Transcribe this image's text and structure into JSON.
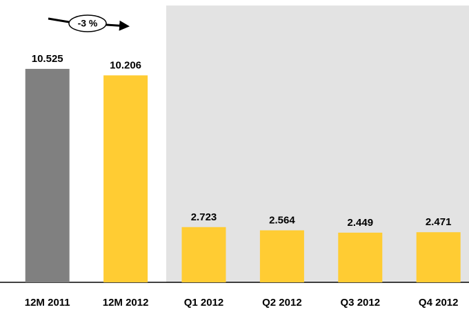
{
  "chart_data": {
    "type": "bar",
    "categories": [
      "12M 2011",
      "12M 2012",
      "Q1 2012",
      "Q2 2012",
      "Q3 2012",
      "Q4 2012"
    ],
    "values": [
      10.525,
      10.206,
      2.723,
      2.564,
      2.449,
      2.471
    ],
    "colors": [
      "#808080",
      "#ffcc33",
      "#ffcc33",
      "#ffcc33",
      "#ffcc33",
      "#ffcc33"
    ],
    "annotation": "-3 %"
  }
}
